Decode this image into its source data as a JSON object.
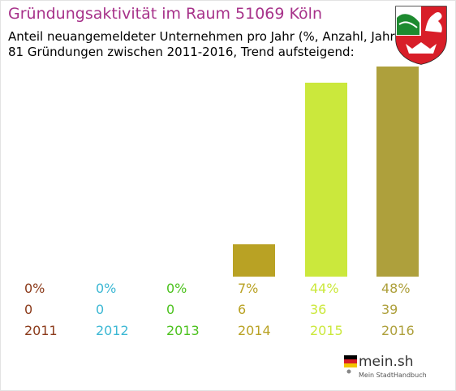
{
  "header": {
    "title": "Gründungsaktivität im Raum 51069 Köln",
    "subtitle_line1": "Anteil neuangemeldeter Unternehmen pro Jahr (%, Anzahl, Jahr)",
    "subtitle_line2": "81 Gründungen zwischen 2011-2016, Trend aufsteigend:"
  },
  "colors": {
    "title": "#a7328a",
    "c2011": "#8b3a1a",
    "c2012": "#3db8d4",
    "c2013": "#4cc21e",
    "c2014": "#b9a224",
    "c2015": "#cbe83c",
    "c2016": "#aea03c"
  },
  "chart_data": {
    "type": "bar",
    "categories": [
      "2011",
      "2012",
      "2013",
      "2014",
      "2015",
      "2016"
    ],
    "values": [
      0,
      0,
      0,
      6,
      36,
      39
    ],
    "percents": [
      "0%",
      "0%",
      "0%",
      "7%",
      "44%",
      "48%"
    ],
    "counts": [
      "0",
      "0",
      "0",
      "6",
      "36",
      "39"
    ],
    "ylim": [
      0,
      39
    ],
    "grid": false,
    "legend": "none"
  },
  "footer": {
    "logo_text": "mein.sh",
    "logo_sub": "Mein StadtHandbuch"
  },
  "crest": {
    "icon": "nrw-coat-of-arms-icon"
  },
  "logo": {
    "icon": "germany-flag-pin-icon"
  }
}
